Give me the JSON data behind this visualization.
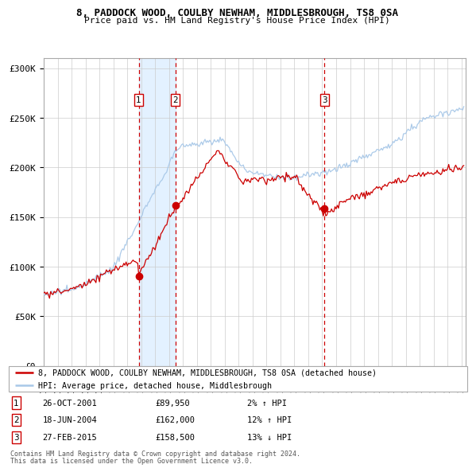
{
  "title_line1": "8, PADDOCK WOOD, COULBY NEWHAM, MIDDLESBROUGH, TS8 0SA",
  "title_line2": "Price paid vs. HM Land Registry's House Price Index (HPI)",
  "ylim": [
    0,
    310000
  ],
  "yticks": [
    0,
    50000,
    100000,
    150000,
    200000,
    250000,
    300000
  ],
  "ytick_labels": [
    "£0",
    "£50K",
    "£100K",
    "£150K",
    "£200K",
    "£250K",
    "£300K"
  ],
  "background_color": "#ffffff",
  "plot_bg_color": "#ffffff",
  "grid_color": "#cccccc",
  "red_line_color": "#cc0000",
  "blue_line_color": "#a8c8e8",
  "vline_color": "#cc0000",
  "shade_color": "#ddeeff",
  "legend_line1": "8, PADDOCK WOOD, COULBY NEWHAM, MIDDLESBROUGH, TS8 0SA (detached house)",
  "legend_line2": "HPI: Average price, detached house, Middlesbrough",
  "sales": [
    {
      "num": 1,
      "date": "26-OCT-2001",
      "price": 89950,
      "pct": "2%",
      "dir": "↑",
      "x_year": 2001.82
    },
    {
      "num": 2,
      "date": "18-JUN-2004",
      "price": 162000,
      "pct": "12%",
      "dir": "↑",
      "x_year": 2004.46
    },
    {
      "num": 3,
      "date": "27-FEB-2015",
      "price": 158500,
      "pct": "13%",
      "dir": "↓",
      "x_year": 2015.15
    }
  ],
  "footnote1": "Contains HM Land Registry data © Crown copyright and database right 2024.",
  "footnote2": "This data is licensed under the Open Government Licence v3.0.",
  "shade_start": 2001.82,
  "shade_end": 2004.46,
  "xlim_start": 1995.0,
  "xlim_end": 2025.3
}
